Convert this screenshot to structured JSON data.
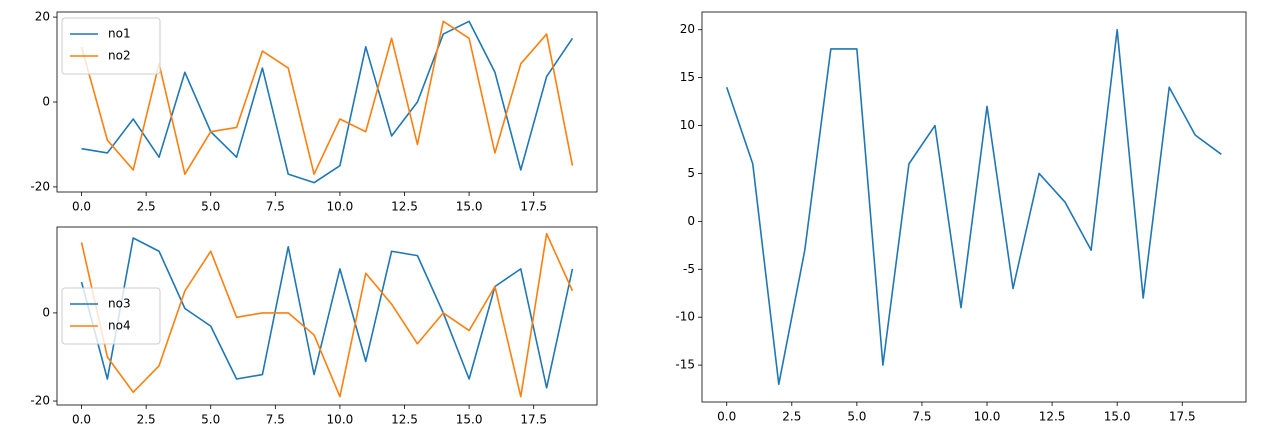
{
  "chart_data": [
    {
      "type": "line",
      "x": [
        0,
        1,
        2,
        3,
        4,
        5,
        6,
        7,
        8,
        9,
        10,
        11,
        12,
        13,
        14,
        15,
        16,
        17,
        18,
        19
      ],
      "series": [
        {
          "name": "no1",
          "color": "#1f77b4",
          "values": [
            -11,
            -12,
            -4,
            -13,
            7,
            -7,
            -13,
            8,
            -17,
            -19,
            -15,
            13,
            -8,
            0,
            16,
            19,
            7,
            -16,
            6,
            15
          ]
        },
        {
          "name": "no2",
          "color": "#ff7f0e",
          "values": [
            13,
            -9,
            -16,
            9,
            -17,
            -7,
            -6,
            12,
            8,
            -17,
            -4,
            -7,
            15,
            -10,
            19,
            15,
            -12,
            9,
            16,
            -15
          ]
        }
      ],
      "xlim": [
        -0.95,
        19.95
      ],
      "ylim": [
        -21.2,
        21.2
      ],
      "xticks": [
        {
          "value": 0,
          "label": "0.0"
        },
        {
          "value": 2.5,
          "label": "2.5"
        },
        {
          "value": 5,
          "label": "5.0"
        },
        {
          "value": 7.5,
          "label": "7.5"
        },
        {
          "value": 10,
          "label": "10.0"
        },
        {
          "value": 12.5,
          "label": "12.5"
        },
        {
          "value": 15,
          "label": "15.0"
        },
        {
          "value": 17.5,
          "label": "17.5"
        }
      ],
      "yticks": [
        -20,
        0,
        20
      ],
      "legend": "upper-left"
    },
    {
      "type": "line",
      "x": [
        0,
        1,
        2,
        3,
        4,
        5,
        6,
        7,
        8,
        9,
        10,
        11,
        12,
        13,
        14,
        15,
        16,
        17,
        18,
        19
      ],
      "series": [
        {
          "name": "no3",
          "color": "#1f77b4",
          "values": [
            7,
            -15,
            17,
            14,
            1,
            -3,
            -15,
            -14,
            15,
            -14,
            10,
            -11,
            14,
            13,
            0,
            -15,
            6,
            10,
            -17,
            10
          ]
        },
        {
          "name": "no4",
          "color": "#ff7f0e",
          "values": [
            16,
            -10,
            -18,
            -12,
            5,
            14,
            -1,
            0,
            0,
            -5,
            -19,
            9,
            2,
            -7,
            0,
            -4,
            6,
            -19,
            18,
            5
          ]
        }
      ],
      "xlim": [
        -0.95,
        19.95
      ],
      "ylim": [
        -20.9,
        19.5
      ],
      "xticks": [
        {
          "value": 0,
          "label": "0.0"
        },
        {
          "value": 2.5,
          "label": "2.5"
        },
        {
          "value": 5,
          "label": "5.0"
        },
        {
          "value": 7.5,
          "label": "7.5"
        },
        {
          "value": 10,
          "label": "10.0"
        },
        {
          "value": 12.5,
          "label": "12.5"
        },
        {
          "value": 15,
          "label": "15.0"
        },
        {
          "value": 17.5,
          "label": "17.5"
        }
      ],
      "yticks": [
        -20,
        0
      ],
      "legend": "center-left"
    },
    {
      "type": "line",
      "x": [
        0,
        1,
        2,
        3,
        4,
        5,
        6,
        7,
        8,
        9,
        10,
        11,
        12,
        13,
        14,
        15,
        16,
        17,
        18,
        19
      ],
      "values": [
        14,
        6,
        -17,
        -3,
        18,
        18,
        -15,
        6,
        10,
        -9,
        12,
        -7,
        5,
        2,
        -3,
        20,
        -8,
        14,
        9,
        7
      ],
      "color": "#1f77b4",
      "xlim": [
        -0.95,
        19.95
      ],
      "ylim": [
        -18.85,
        21.85
      ],
      "xticks": [
        {
          "value": 0,
          "label": "0.0"
        },
        {
          "value": 2.5,
          "label": "2.5"
        },
        {
          "value": 5,
          "label": "5.0"
        },
        {
          "value": 7.5,
          "label": "7.5"
        },
        {
          "value": 10,
          "label": "10.0"
        },
        {
          "value": 12.5,
          "label": "12.5"
        },
        {
          "value": 15,
          "label": "15.0"
        },
        {
          "value": 17.5,
          "label": "17.5"
        }
      ],
      "yticks": [
        -15,
        -10,
        -5,
        0,
        5,
        10,
        15,
        20
      ]
    }
  ]
}
